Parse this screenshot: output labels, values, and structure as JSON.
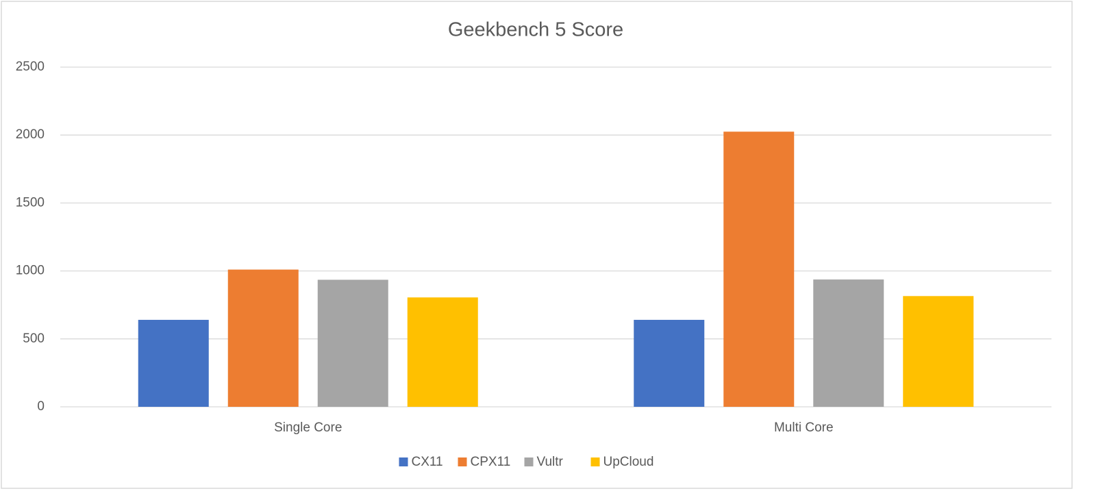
{
  "chart_data": {
    "type": "bar",
    "title": "Geekbench 5 Score",
    "categories": [
      "Single Core",
      "Multi Core"
    ],
    "series": [
      {
        "name": "CX11",
        "color": "#4472c4",
        "values": [
          640,
          640
        ]
      },
      {
        "name": "CPX11",
        "color": "#ed7d31",
        "values": [
          1010,
          2025
        ]
      },
      {
        "name": "Vultr",
        "color": "#a5a5a5",
        "values": [
          935,
          937
        ]
      },
      {
        "name": "UpCloud",
        "color": "#ffc000",
        "values": [
          805,
          815
        ]
      }
    ],
    "ylim": [
      0,
      2500
    ],
    "yticks": [
      0,
      500,
      1000,
      1500,
      2000,
      2500
    ],
    "grid": true,
    "legend": "bottom"
  }
}
